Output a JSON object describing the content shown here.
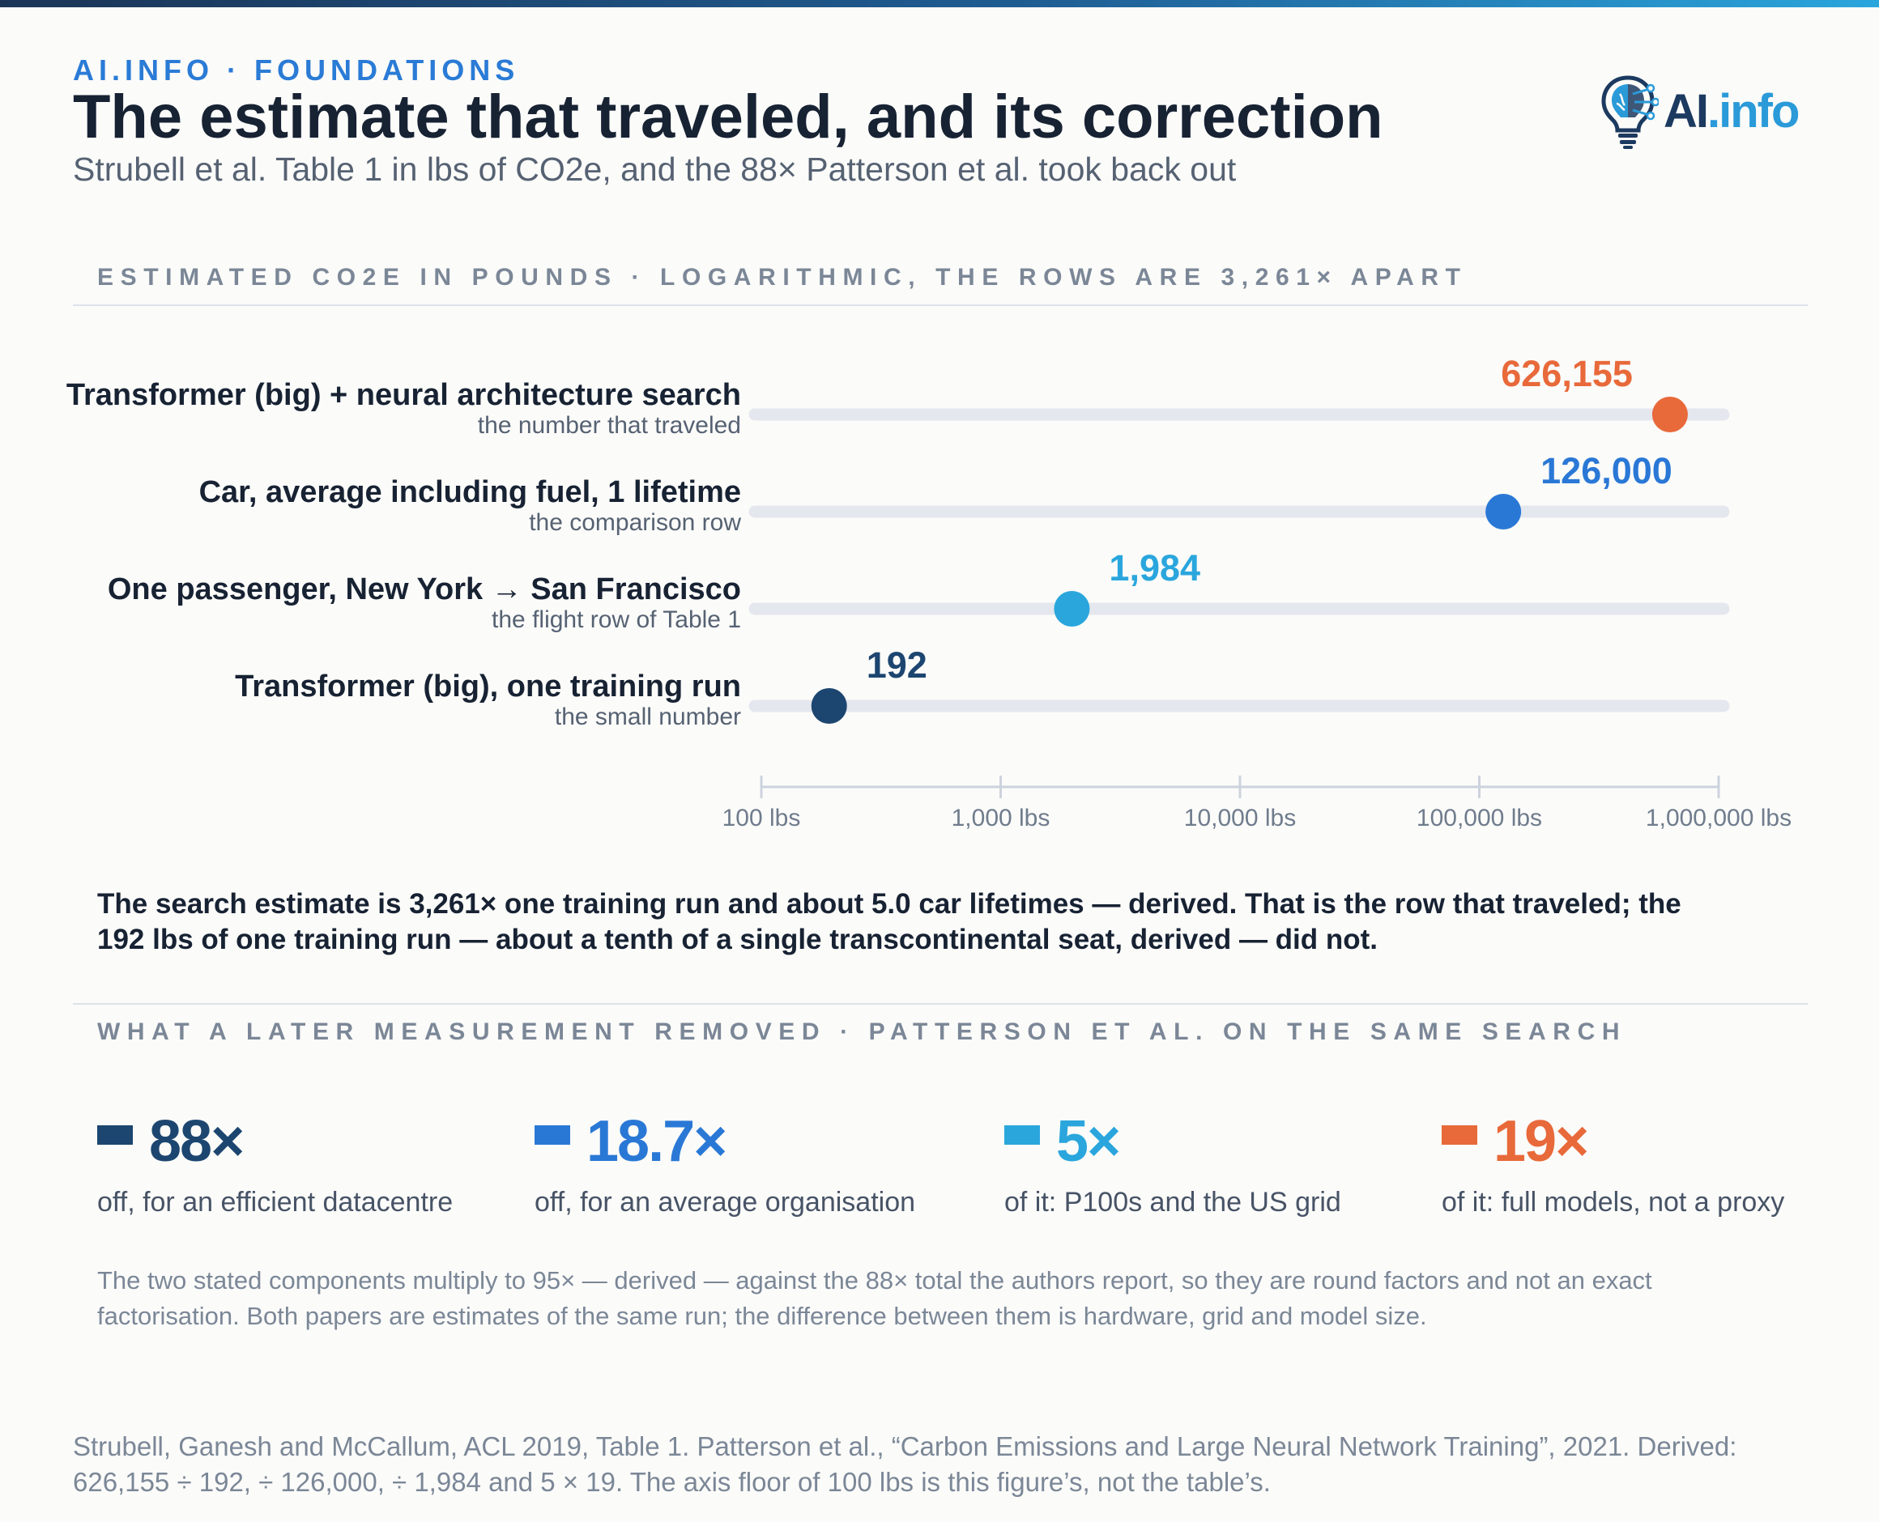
{
  "header": {
    "kicker": "AI.INFO · FOUNDATIONS",
    "title": "The estimate that traveled, and its correction",
    "subtitle": "Strubell et al. Table 1 in lbs of CO2e, and the 88× Patterson et al. took back out",
    "logo_ai": "AI",
    "logo_info": ".info",
    "logo_icon": "lightbulb-brain-icon"
  },
  "section1_label": "ESTIMATED CO2E IN POUNDS · LOGARITHMIC, THE ROWS ARE 3,261× APART",
  "chart_data": {
    "type": "dot",
    "xscale": "log",
    "xlim": [
      100,
      1000000
    ],
    "x_ticks": [
      100,
      1000,
      10000,
      100000,
      1000000
    ],
    "x_tick_labels": [
      "100 lbs",
      "1,000 lbs",
      "10,000 lbs",
      "100,000 lbs",
      "1,000,000 lbs"
    ],
    "grid": false,
    "rows": [
      {
        "label": "Transformer (big) + neural architecture search",
        "sublabel": "the number that traveled",
        "value": 626155,
        "value_label": "626,155",
        "color": "#e8693a"
      },
      {
        "label": "Car, average including fuel, 1 lifetime",
        "sublabel": "the comparison row",
        "value": 126000,
        "value_label": "126,000",
        "color": "#2a78d6"
      },
      {
        "label": "One passenger, New York → San Francisco",
        "sublabel": "the flight row of Table 1",
        "value": 1984,
        "value_label": "1,984",
        "color": "#2aa6dd"
      },
      {
        "label": "Transformer (big), one training run",
        "sublabel": "the small number",
        "value": 192,
        "value_label": "192",
        "color": "#1c4670"
      }
    ]
  },
  "takeaway": "The search estimate is 3,261× one training run and about 5.0 car lifetimes — derived. That is the row that traveled; the 192 lbs of one training run — about a tenth of a single transcontinental seat, derived — did not.",
  "section2_label": "WHAT A LATER MEASUREMENT REMOVED · PATTERSON ET AL. ON THE SAME SEARCH",
  "stats": [
    {
      "value": "88×",
      "desc": "off, for an efficient datacentre",
      "color": "#1c4670"
    },
    {
      "value": "18.7×",
      "desc": "off, for an average organisation",
      "color": "#2a78d6"
    },
    {
      "value": "5×",
      "desc": "of it: P100s and the US grid",
      "color": "#2aa6dd"
    },
    {
      "value": "19×",
      "desc": "of it: full models, not a proxy",
      "color": "#e8693a"
    }
  ],
  "note": "The two stated components multiply to 95× — derived — against the 88× total the authors report, so they are round factors and not an exact factorisation. Both papers are estimates of the same run; the difference between them is hardware, grid and model size.",
  "source": "Strubell, Ganesh and McCallum, ACL 2019, Table 1. Patterson et al., “Carbon Emissions and Large Neural Network Training”, 2021. Derived: 626,155 ÷ 192, ÷ 126,000, ÷ 1,984 and 5 × 19. The axis floor of 100 lbs is this figure’s, not the table’s."
}
